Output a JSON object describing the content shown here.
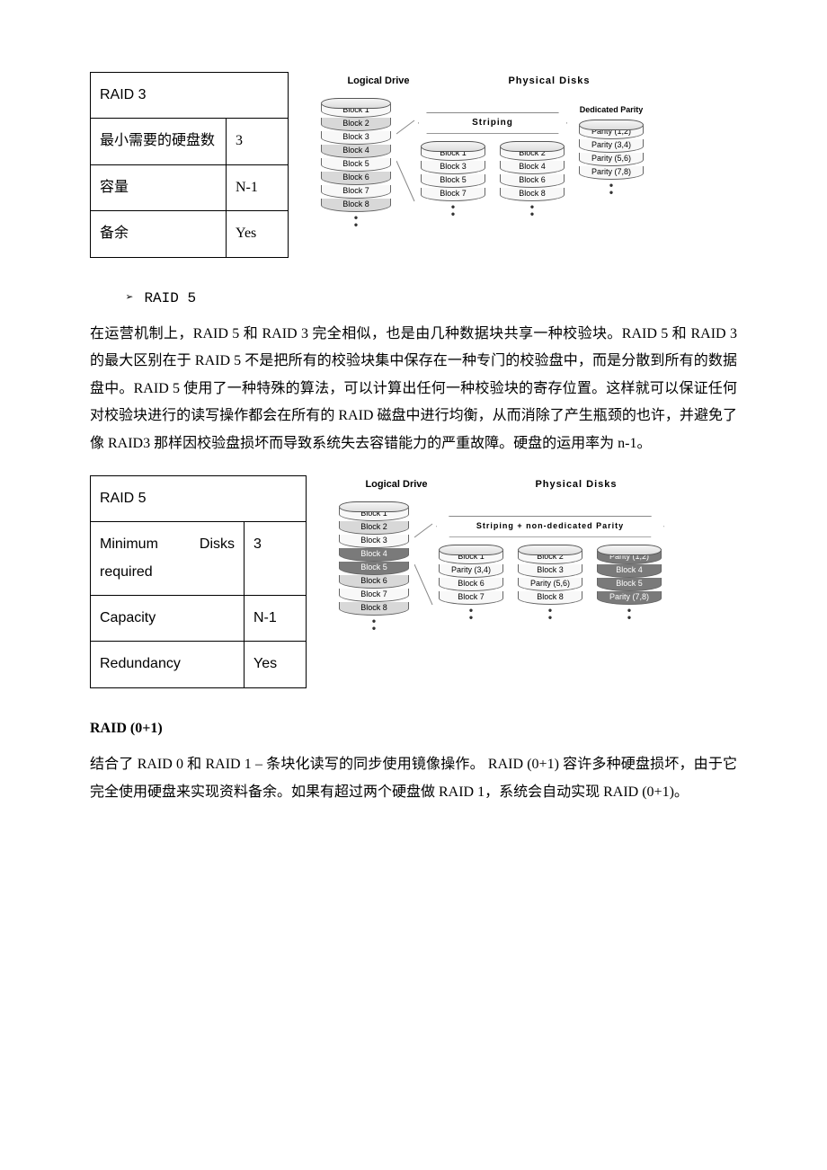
{
  "raid3": {
    "table": {
      "title": "RAID 3",
      "rows": [
        {
          "label": "最小需要的硬盘数",
          "value": "3"
        },
        {
          "label": "容量",
          "value": "N-1"
        },
        {
          "label": "备余",
          "value": "Yes"
        }
      ],
      "col_widths": {
        "label": 130,
        "value": 48
      }
    },
    "diagram": {
      "title_left": "Logical Drive",
      "title_right": "Physical Disks",
      "logical_blocks": [
        "Block 1",
        "Block 2",
        "Block 3",
        "Block 4",
        "Block 5",
        "Block 6",
        "Block 7",
        "Block 8"
      ],
      "banner": "Striping",
      "parity_caption": "Dedicated Parity",
      "phys": [
        {
          "blocks": [
            "Block 1",
            "Block 3",
            "Block 5",
            "Block 7"
          ],
          "shaded": []
        },
        {
          "blocks": [
            "Block 2",
            "Block 4",
            "Block 6",
            "Block 8"
          ],
          "shaded": []
        },
        {
          "blocks": [
            "Parity (1,2)",
            "Parity (3,4)",
            "Parity (5,6)",
            "Parity (7,8)"
          ],
          "shaded": []
        }
      ],
      "colors": {
        "slice_light": "#f8f8f8",
        "slice_alt": "#d8d8d8",
        "slice_dark": "#888888",
        "text_on_dark": "#ffffff"
      }
    }
  },
  "raid5_heading": {
    "bullet": "➢",
    "label": "RAID 5"
  },
  "raid5_para": "在运营机制上，RAID 5 和 RAID 3 完全相似，也是由几种数据块共享一种校验块。RAID 5 和 RAID 3 的最大区别在于 RAID 5 不是把所有的校验块集中保存在一种专门的校验盘中，而是分散到所有的数据盘中。RAID 5 使用了一种特殊的算法，可以计算出任何一种校验块的寄存位置。这样就可以保证任何对校验块进行的读写操作都会在所有的 RAID 磁盘中进行均衡，从而消除了产生瓶颈的也许，并避免了像 RAID3 那样因校验盘损坏而导致系统失去容错能力的严重故障。硬盘的运用率为 n-1。",
  "raid5": {
    "table": {
      "title": "RAID 5",
      "rows": [
        {
          "label": "Minimum Disks required",
          "value": "3"
        },
        {
          "label": "Capacity",
          "value": "N-1"
        },
        {
          "label": "Redundancy",
          "value": "Yes"
        }
      ],
      "col_widths": {
        "label": 150,
        "value": 48
      },
      "label_words": {
        "0a": "Minimum",
        "0b": "Disks"
      }
    },
    "diagram": {
      "title_left": "Logical Drive",
      "title_right": "Physical Disks",
      "logical_blocks": [
        "Block 1",
        "Block 2",
        "Block 3",
        "Block 4",
        "Block 5",
        "Block 6",
        "Block 7",
        "Block 8"
      ],
      "logical_dark": [
        3,
        4
      ],
      "banner": "Striping + non-dedicated Parity",
      "phys": [
        {
          "blocks": [
            "Block 1",
            "Parity (3,4)",
            "Block 6",
            "Block 7"
          ],
          "shaded": []
        },
        {
          "blocks": [
            "Block 2",
            "Block 3",
            "Parity (5,6)",
            "Block 8"
          ],
          "shaded": []
        },
        {
          "blocks": [
            "Parity (1,2)",
            "Block 4",
            "Block 5",
            "Parity (7,8)"
          ],
          "shaded": [
            0,
            1,
            2,
            3
          ]
        }
      ],
      "colors": {
        "slice_light": "#f8f8f8",
        "slice_alt": "#d8d8d8",
        "slice_dark": "#7a7a7a",
        "text_on_dark": "#ffffff"
      }
    }
  },
  "raid01": {
    "heading": "RAID (0+1)",
    "para": "结合了 RAID 0 和 RAID 1 – 条块化读写的同步使用镜像操作。 RAID (0+1) 容许多种硬盘损坏，由于它完全使用硬盘来实现资料备余。如果有超过两个硬盘做 RAID 1，系统会自动实现 RAID (0+1)。"
  }
}
